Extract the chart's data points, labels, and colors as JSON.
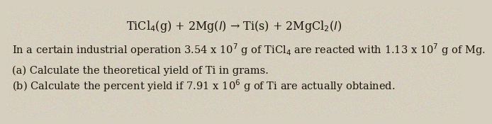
{
  "background_color": "#d6cfbf",
  "title_line": "TiCl$_4$(g) + 2Mg($l$) → Ti(s) + 2MgCl$_2$($l$)",
  "line2": "In a certain industrial operation 3.54 x 10$^7$ g of TiCl$_4$ are reacted with 1.13 x 10$^7$ g of Mg.",
  "line3": "(a) Calculate the theoretical yield of Ti in grams.",
  "line4": "(b) Calculate the percent yield if 7.91 x 10$^6$ g of Ti are actually obtained.",
  "title_fontsize": 11.5,
  "body_fontsize": 10.5,
  "text_color": "#1a1208"
}
